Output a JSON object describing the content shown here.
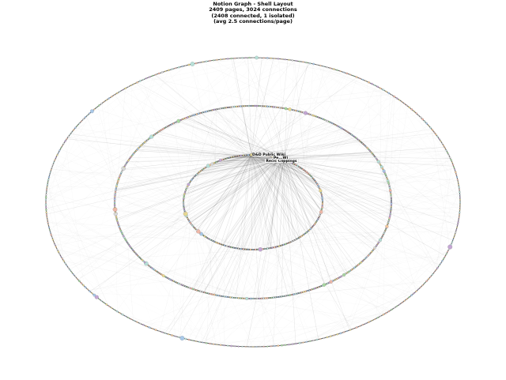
{
  "title": {
    "line1": "Notion Graph - Shell Layout",
    "line2": "2409 pages, 3024 connections",
    "line3": "(2408 connected, 1 isolated)",
    "line4": "(avg 2.5 connections/page)"
  },
  "graph": {
    "layout": "shell",
    "shells": 3,
    "hub_labels": [
      "D&D Public Wiki",
      "Recic Clippings",
      "Pe...Wi"
    ],
    "node_colors": [
      "#c4a7d4",
      "#a8d8a0",
      "#f0b8a8",
      "#a8c8e8",
      "#e8d890",
      "#d8d8d8",
      "#f4c89a",
      "#b8e0d8"
    ],
    "edge_color": "#000000",
    "ring_color": "#6a6a6a"
  }
}
